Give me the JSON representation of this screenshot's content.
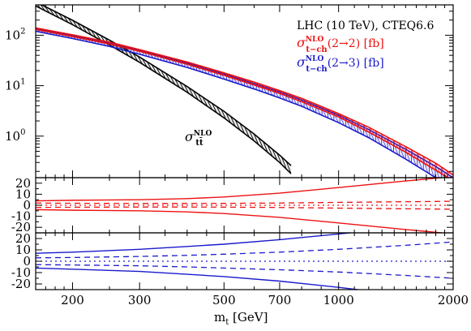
{
  "chart_data": [
    {
      "type": "line",
      "panel": "cross-section",
      "x_scale": "log",
      "y_scale": "log",
      "xlim": [
        160,
        2000
      ],
      "ylim": [
        0.15,
        400
      ],
      "y_ticks": [
        {
          "value": 100,
          "label": "10",
          "exp": "2"
        },
        {
          "value": 10,
          "label": "10",
          "exp": "1"
        },
        {
          "value": 1,
          "label": "10",
          "exp": "0"
        }
      ],
      "annotation": {
        "main": "LHC (10 TeV), CTEQ6.6"
      },
      "series": [
        {
          "name": "σ t-ch NLO (2→2) [fb]",
          "legend_sigma": "σ",
          "legend_sup": "NLO",
          "legend_sub": "t−ch",
          "legend_tail": "(2→2) [fb]",
          "color": "#ee1111",
          "x": [
            160,
            200,
            250,
            300,
            400,
            500,
            600,
            700,
            800,
            1000,
            1200,
            1500,
            1800,
            2000
          ],
          "central": [
            135,
            98,
            70,
            50,
            28,
            17,
            11,
            7.5,
            5.2,
            2.6,
            1.35,
            0.55,
            0.25,
            0.15
          ],
          "upper": [
            140,
            102,
            73,
            52,
            29.5,
            18,
            11.8,
            8.0,
            5.6,
            2.8,
            1.5,
            0.62,
            0.29,
            0.17
          ],
          "lower": [
            130,
            94,
            67,
            48,
            26.5,
            16,
            10.3,
            7.0,
            4.8,
            2.4,
            1.2,
            0.48,
            0.21,
            0.13
          ]
        },
        {
          "name": "σ t-ch NLO (2→3) [fb]",
          "legend_sigma": "σ",
          "legend_sup": "NLO",
          "legend_sub": "t−ch",
          "legend_tail": "(2→3) [fb]",
          "color": "#1a1acc",
          "x": [
            160,
            200,
            250,
            300,
            400,
            500,
            600,
            700,
            800,
            1000,
            1200,
            1500,
            1800,
            2000
          ],
          "central": [
            128,
            92,
            65,
            46,
            25.5,
            15.2,
            9.8,
            6.6,
            4.6,
            2.25,
            1.15,
            0.45,
            0.2,
            0.12
          ],
          "upper": [
            135,
            98,
            70,
            50,
            28,
            17,
            11,
            7.5,
            5.2,
            2.6,
            1.35,
            0.55,
            0.25,
            0.15
          ],
          "lower": [
            120,
            86,
            60,
            42,
            23,
            13.5,
            8.6,
            5.7,
            3.9,
            1.85,
            0.93,
            0.35,
            0.15,
            0.09
          ]
        },
        {
          "name": "σ tt̄ NLO",
          "label_sigma": "σ",
          "label_sup": "NLO",
          "label_sub": "tt̄",
          "color": "#000000",
          "x": [
            160,
            200,
            250,
            300,
            400,
            500,
            600,
            700,
            750
          ],
          "central": [
            420,
            180,
            72,
            33,
            8.5,
            2.7,
            0.95,
            0.36,
            0.22
          ],
          "upper": [
            460,
            198,
            80,
            37,
            9.6,
            3.1,
            1.1,
            0.42,
            0.26
          ],
          "lower": [
            380,
            162,
            64,
            29,
            7.4,
            2.3,
            0.8,
            0.3,
            0.18
          ]
        }
      ]
    },
    {
      "type": "line",
      "panel": "ratio-2to2",
      "x_scale": "log",
      "xlim": [
        160,
        2000
      ],
      "ylim": [
        -25,
        25
      ],
      "y_ticks": [
        20,
        10,
        0,
        -10,
        -20
      ],
      "color": "#ee1111",
      "x": [
        160,
        200,
        300,
        400,
        500,
        700,
        1000,
        1500,
        2000
      ],
      "solid_upper": [
        4,
        4.5,
        5,
        6,
        7.5,
        11,
        16,
        22,
        26
      ],
      "solid_lower": [
        -4,
        -4.5,
        -5,
        -6,
        -7.5,
        -11,
        -16,
        -22,
        -26
      ],
      "dashed_upper": [
        2,
        1.8,
        1.6,
        1.6,
        1.7,
        2.0,
        2.6,
        3.2,
        3.6
      ],
      "dashed_lower": [
        -2,
        -1.8,
        -1.6,
        -1.6,
        -1.7,
        -2.0,
        -2.6,
        -3.2,
        -3.6
      ],
      "dotted": [
        0,
        0,
        0,
        0,
        0,
        0,
        0,
        0,
        0
      ]
    },
    {
      "type": "line",
      "panel": "ratio-2to3",
      "x_scale": "log",
      "xlim": [
        160,
        2000
      ],
      "ylim": [
        -25,
        25
      ],
      "y_ticks": [
        20,
        10,
        0,
        -10,
        -20
      ],
      "color": "#1a1acc",
      "x": [
        160,
        200,
        300,
        400,
        500,
        700,
        1000,
        1500,
        2000
      ],
      "solid_upper": [
        7,
        8,
        10.5,
        13,
        15,
        19,
        24,
        30,
        36
      ],
      "solid_lower": [
        -6,
        -7,
        -9,
        -11.5,
        -13.5,
        -17.5,
        -23,
        -30,
        -36
      ],
      "dashed_upper": [
        3,
        3.3,
        4.2,
        5.2,
        6.2,
        8,
        10.5,
        14,
        17
      ],
      "dashed_lower": [
        -3,
        -3.3,
        -4.0,
        -5.0,
        -6.0,
        -7.5,
        -9.5,
        -12.5,
        -15
      ],
      "dotted": [
        0,
        0,
        0,
        0,
        0,
        0,
        0,
        0,
        0
      ]
    }
  ],
  "x_axis": {
    "label_main": "m",
    "label_sub": "t",
    "label_unit": " [GeV]",
    "ticks": [
      200,
      300,
      500,
      700,
      1000,
      2000
    ],
    "tick_labels": [
      "200",
      "300",
      "500",
      "700",
      "1000",
      "2000"
    ]
  }
}
